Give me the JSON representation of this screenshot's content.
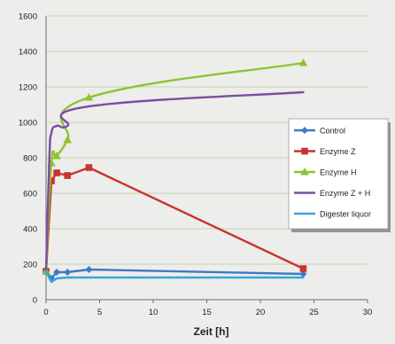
{
  "chart_data": {
    "type": "line",
    "title": "",
    "xlabel": "Zeit [h]",
    "ylabel": "",
    "xlim": [
      0,
      30
    ],
    "ylim": [
      0,
      1600
    ],
    "x_ticks": [
      0,
      5,
      10,
      15,
      20,
      25,
      30
    ],
    "y_ticks": [
      0,
      200,
      400,
      600,
      800,
      1000,
      1200,
      1400,
      1600
    ],
    "grid": "horizontal",
    "legend_position": "right",
    "series": [
      {
        "name": "Control",
        "color": "#3f78c6",
        "marker": "diamond",
        "smooth": false,
        "points": [
          [
            0,
            160
          ],
          [
            0.5,
            120
          ],
          [
            1,
            155
          ],
          [
            2,
            155
          ],
          [
            4,
            170
          ],
          [
            24,
            145
          ]
        ]
      },
      {
        "name": "Enzyme Z",
        "color": "#c8342e",
        "marker": "square",
        "smooth": false,
        "points": [
          [
            0,
            160
          ],
          [
            0.5,
            670
          ],
          [
            1,
            715
          ],
          [
            2,
            700
          ],
          [
            4,
            745
          ],
          [
            24,
            175
          ]
        ]
      },
      {
        "name": "Enzyme H",
        "color": "#8fc232",
        "marker": "triangle",
        "smooth": true,
        "points": [
          [
            0,
            160
          ],
          [
            0.5,
            770
          ],
          [
            1,
            810
          ],
          [
            2,
            900
          ],
          [
            4,
            1140
          ],
          [
            24,
            1335
          ]
        ]
      },
      {
        "name": "Enzyme Z + H",
        "color": "#7a4fa1",
        "marker": "none",
        "smooth": true,
        "points": [
          [
            0,
            160
          ],
          [
            0.3,
            780
          ],
          [
            0.5,
            940
          ],
          [
            1,
            980
          ],
          [
            2,
            980
          ],
          [
            4,
            1090
          ],
          [
            24,
            1170
          ]
        ]
      },
      {
        "name": "Digester liquor",
        "color": "#35a7d6",
        "marker": "none",
        "smooth": false,
        "points": [
          [
            0,
            160
          ],
          [
            0.5,
            100
          ],
          [
            1,
            120
          ],
          [
            2,
            125
          ],
          [
            4,
            125
          ],
          [
            24,
            125
          ]
        ]
      }
    ]
  }
}
